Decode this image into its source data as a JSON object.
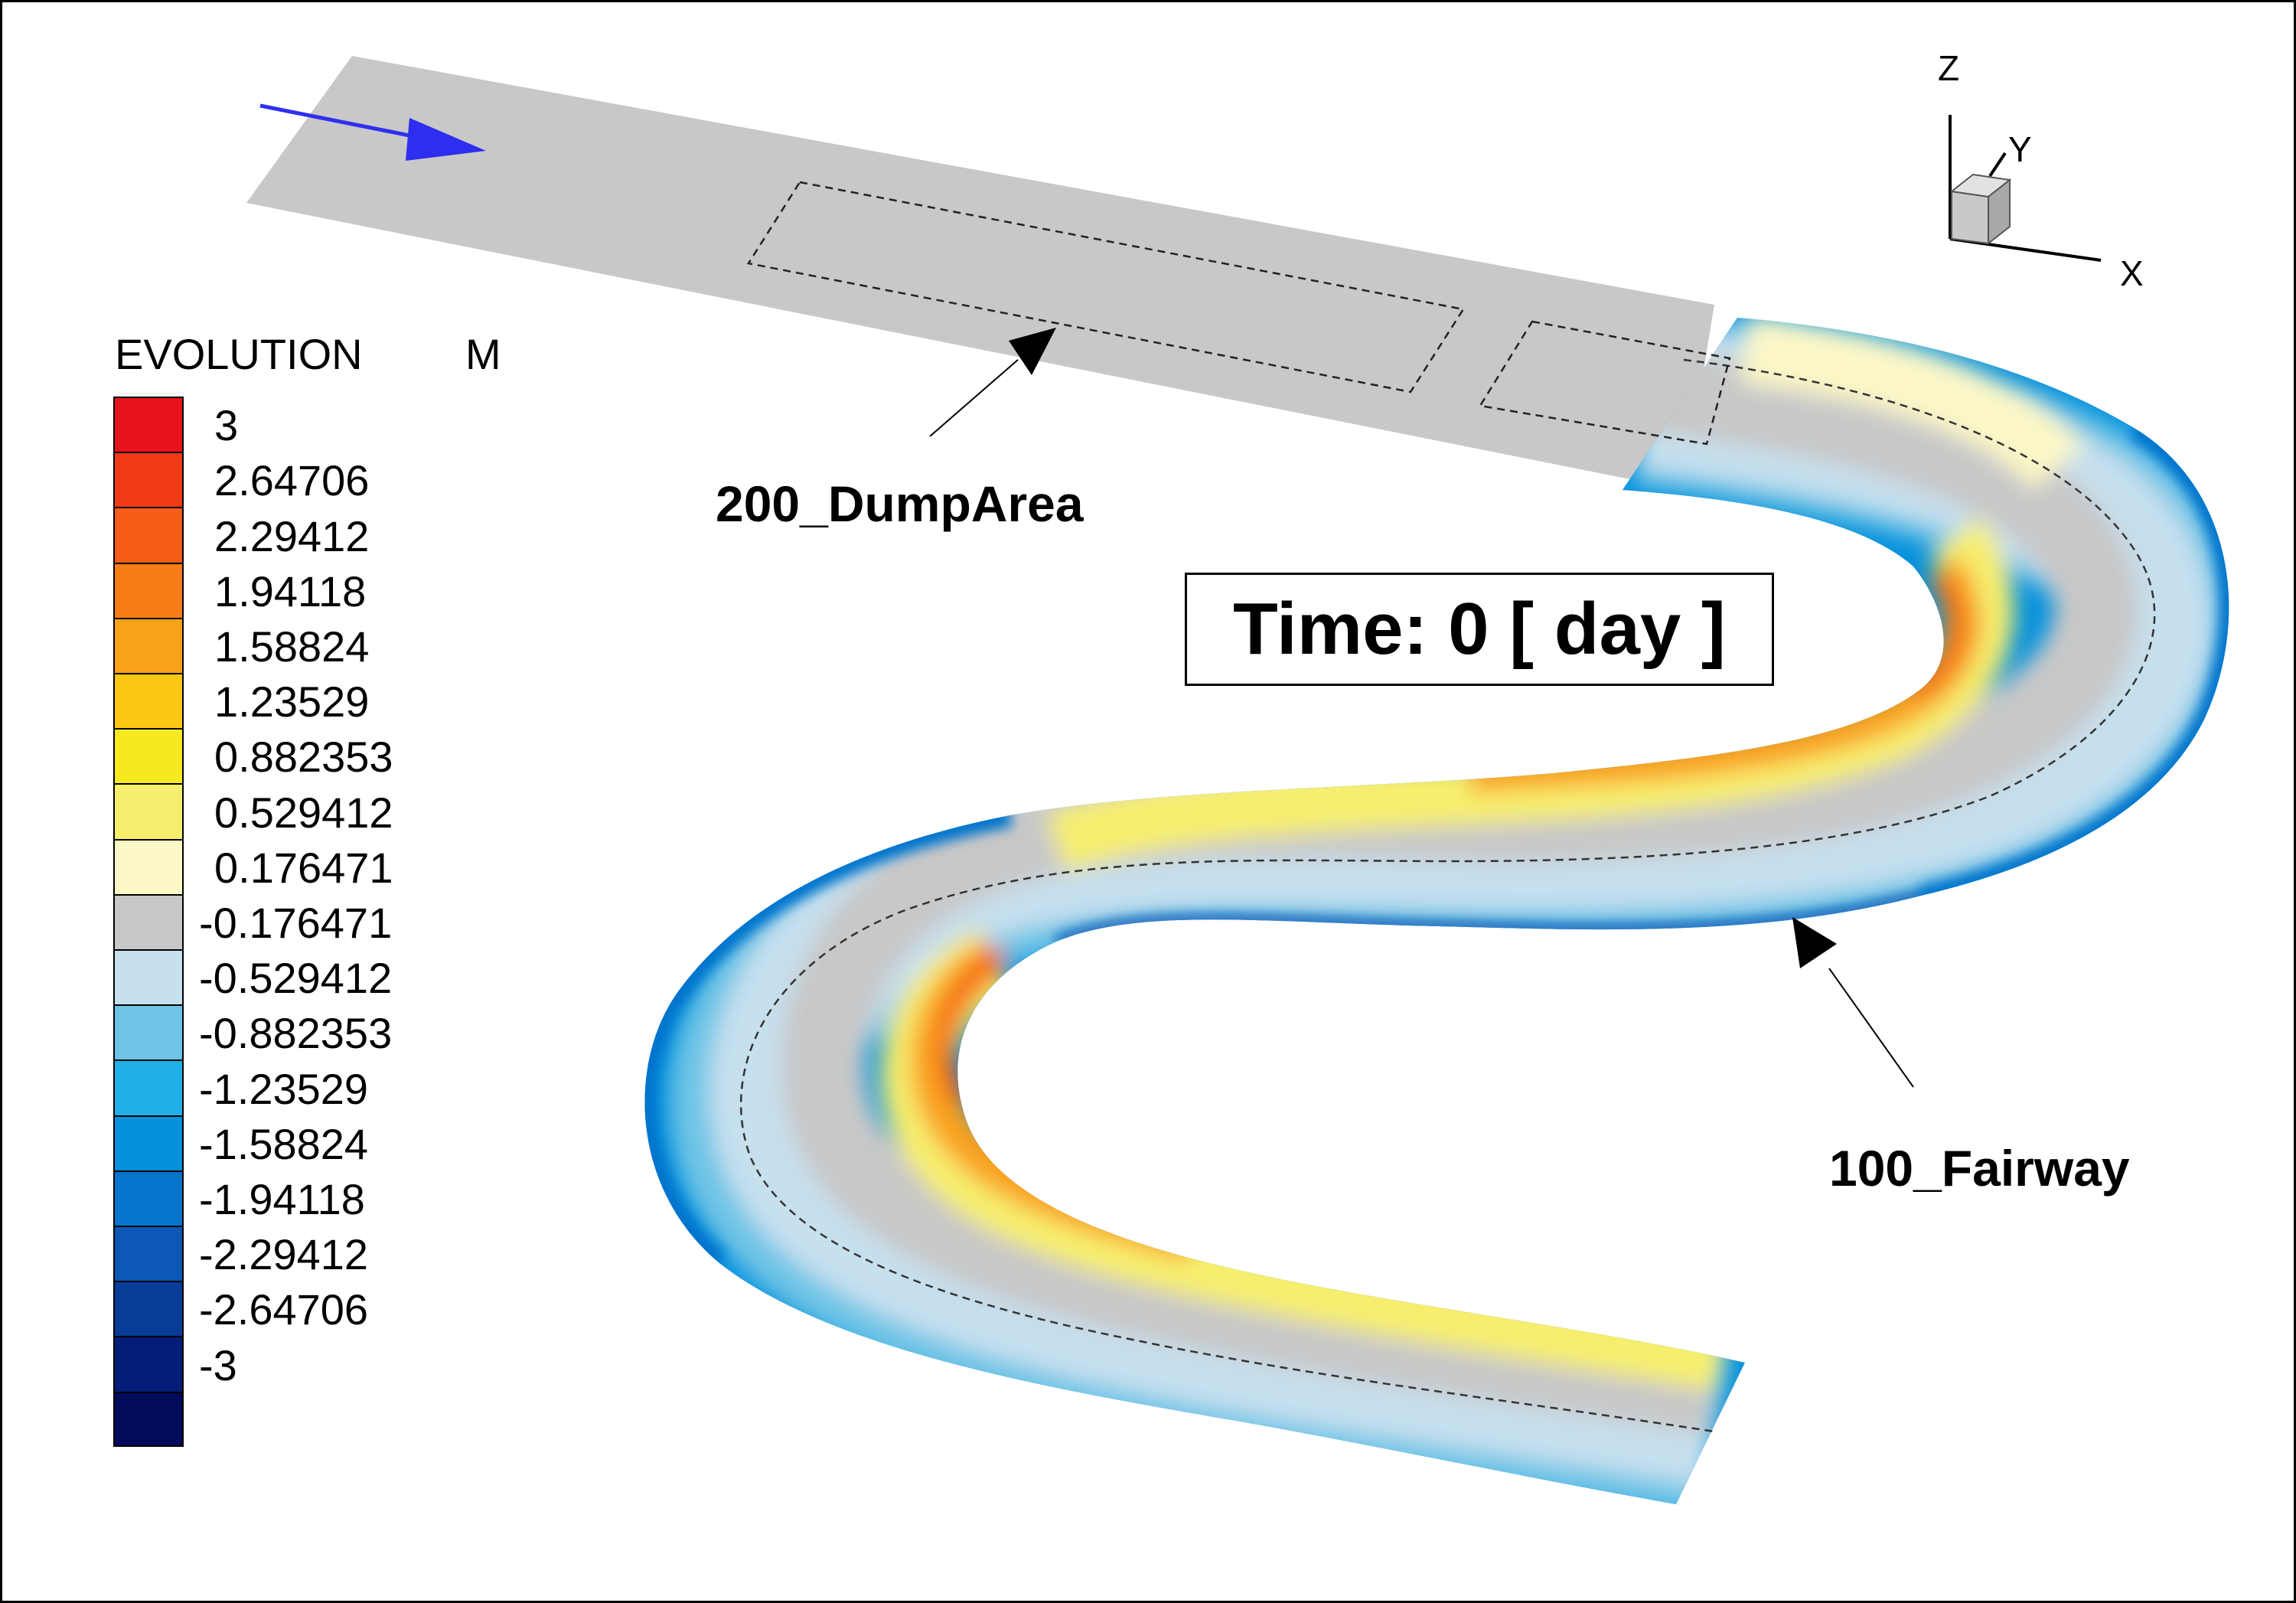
{
  "chart_data": {
    "type": "contour",
    "legend": {
      "variable": "EVOLUTION",
      "unit": "M",
      "levels": [
        "3",
        "2.64706",
        "2.29412",
        "1.94118",
        "1.58824",
        "1.23529",
        "0.882353",
        "0.529412",
        "0.176471",
        "-0.176471",
        "-0.529412",
        "-0.882353",
        "-1.23529",
        "-1.58824",
        "-1.94118",
        "-2.29412",
        "-2.64706",
        "-3"
      ],
      "values": [
        3,
        2.64706,
        2.29412,
        1.94118,
        1.58824,
        1.23529,
        0.882353,
        0.529412,
        0.176471,
        -0.176471,
        -0.529412,
        -0.882353,
        -1.23529,
        -1.58824,
        -1.94118,
        -2.29412,
        -2.64706,
        -3
      ],
      "colors": [
        "#e8141b",
        "#f23a16",
        "#f55d16",
        "#f77e16",
        "#f9a11a",
        "#fbc712",
        "#f7e920",
        "#f6ee6d",
        "#fbf7c7",
        "#c8c8c8",
        "#c6e0ee",
        "#6ec4e6",
        "#20b0e8",
        "#0591dc",
        "#0673cc",
        "#0b58b6",
        "#073d98",
        "#041d78",
        "#020a5a"
      ],
      "range": [
        -3,
        3
      ]
    },
    "time": "Time: 0 [ day ]",
    "zones": [
      "200_DumpArea",
      "100_Fairway"
    ],
    "axes": [
      "X",
      "Y",
      "Z"
    ]
  }
}
